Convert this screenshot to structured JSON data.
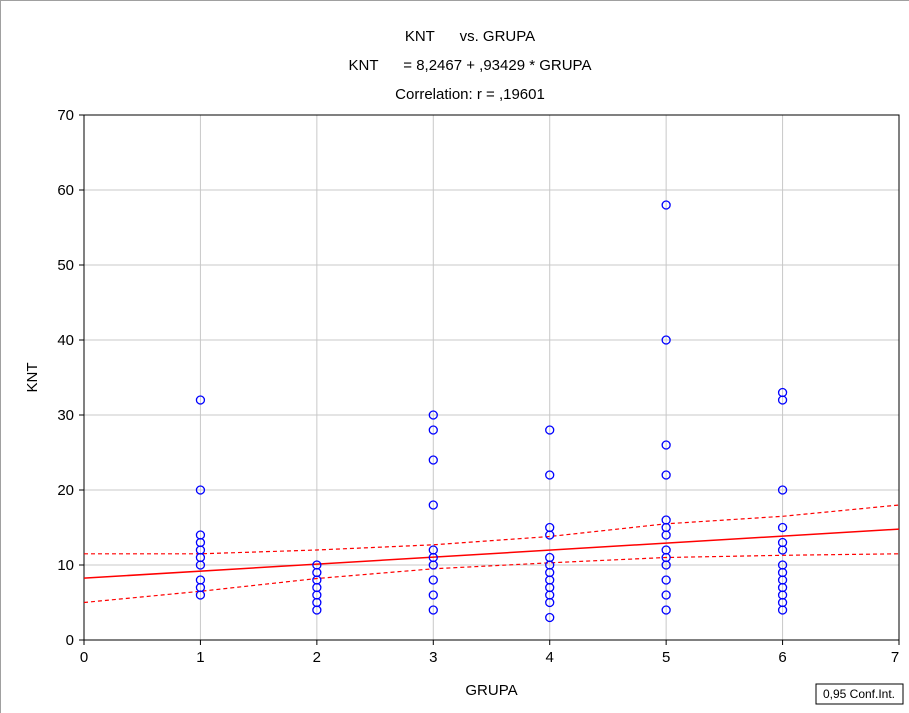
{
  "chart_data": {
    "type": "scatter",
    "title_lines": [
      "KNT      vs. GRUPA",
      "KNT      = 8,2467 + ,93429 * GRUPA",
      "Correlation: r = ,19601"
    ],
    "xlabel": "GRUPA",
    "ylabel": "KNT",
    "xlim": [
      0,
      7
    ],
    "ylim": [
      0,
      70
    ],
    "x_ticks": [
      0,
      1,
      2,
      3,
      4,
      5,
      6,
      7
    ],
    "y_ticks": [
      0,
      10,
      20,
      30,
      40,
      50,
      60,
      70
    ],
    "grid": true,
    "legend": "0,95 Conf.Int.",
    "legend_position": "bottom-right",
    "colors": {
      "points": "#0000ff",
      "fit_line": "#ff0000",
      "conf_band": "#ff0000",
      "grid": "#c8c8c8"
    },
    "regression": {
      "intercept": 8.2467,
      "slope": 0.93429,
      "r": 0.19601
    },
    "confidence_band": {
      "upper": [
        [
          0,
          11.5
        ],
        [
          1,
          11.5
        ],
        [
          2,
          12.0
        ],
        [
          3,
          12.7
        ],
        [
          4,
          13.8
        ],
        [
          5,
          15.5
        ],
        [
          6,
          16.5
        ],
        [
          7,
          18.0
        ]
      ],
      "lower": [
        [
          0,
          5.0
        ],
        [
          1,
          6.5
        ],
        [
          2,
          8.2
        ],
        [
          3,
          9.5
        ],
        [
          4,
          10.3
        ],
        [
          5,
          11.0
        ],
        [
          6,
          11.3
        ],
        [
          7,
          11.5
        ]
      ]
    },
    "series": [
      {
        "points": [
          [
            1,
            32
          ],
          [
            1,
            20
          ],
          [
            1,
            14
          ],
          [
            1,
            13
          ],
          [
            1,
            12
          ],
          [
            1,
            11
          ],
          [
            1,
            10
          ],
          [
            1,
            8
          ],
          [
            1,
            7
          ],
          [
            1,
            6
          ],
          [
            2,
            10
          ],
          [
            2,
            9
          ],
          [
            2,
            8
          ],
          [
            2,
            7
          ],
          [
            2,
            6
          ],
          [
            2,
            5
          ],
          [
            2,
            4
          ],
          [
            3,
            30
          ],
          [
            3,
            28
          ],
          [
            3,
            24
          ],
          [
            3,
            18
          ],
          [
            3,
            12
          ],
          [
            3,
            11
          ],
          [
            3,
            10
          ],
          [
            3,
            8
          ],
          [
            3,
            6
          ],
          [
            3,
            4
          ],
          [
            4,
            28
          ],
          [
            4,
            22
          ],
          [
            4,
            15
          ],
          [
            4,
            14
          ],
          [
            4,
            11
          ],
          [
            4,
            10
          ],
          [
            4,
            9
          ],
          [
            4,
            8
          ],
          [
            4,
            7
          ],
          [
            4,
            6
          ],
          [
            4,
            5
          ],
          [
            4,
            3
          ],
          [
            5,
            58
          ],
          [
            5,
            40
          ],
          [
            5,
            26
          ],
          [
            5,
            22
          ],
          [
            5,
            16
          ],
          [
            5,
            15
          ],
          [
            5,
            14
          ],
          [
            5,
            12
          ],
          [
            5,
            11
          ],
          [
            5,
            10
          ],
          [
            5,
            8
          ],
          [
            5,
            6
          ],
          [
            5,
            4
          ],
          [
            6,
            33
          ],
          [
            6,
            32
          ],
          [
            6,
            20
          ],
          [
            6,
            15
          ],
          [
            6,
            13
          ],
          [
            6,
            12
          ],
          [
            6,
            10
          ],
          [
            6,
            9
          ],
          [
            6,
            8
          ],
          [
            6,
            7
          ],
          [
            6,
            6
          ],
          [
            6,
            5
          ],
          [
            6,
            4
          ]
        ]
      }
    ]
  }
}
